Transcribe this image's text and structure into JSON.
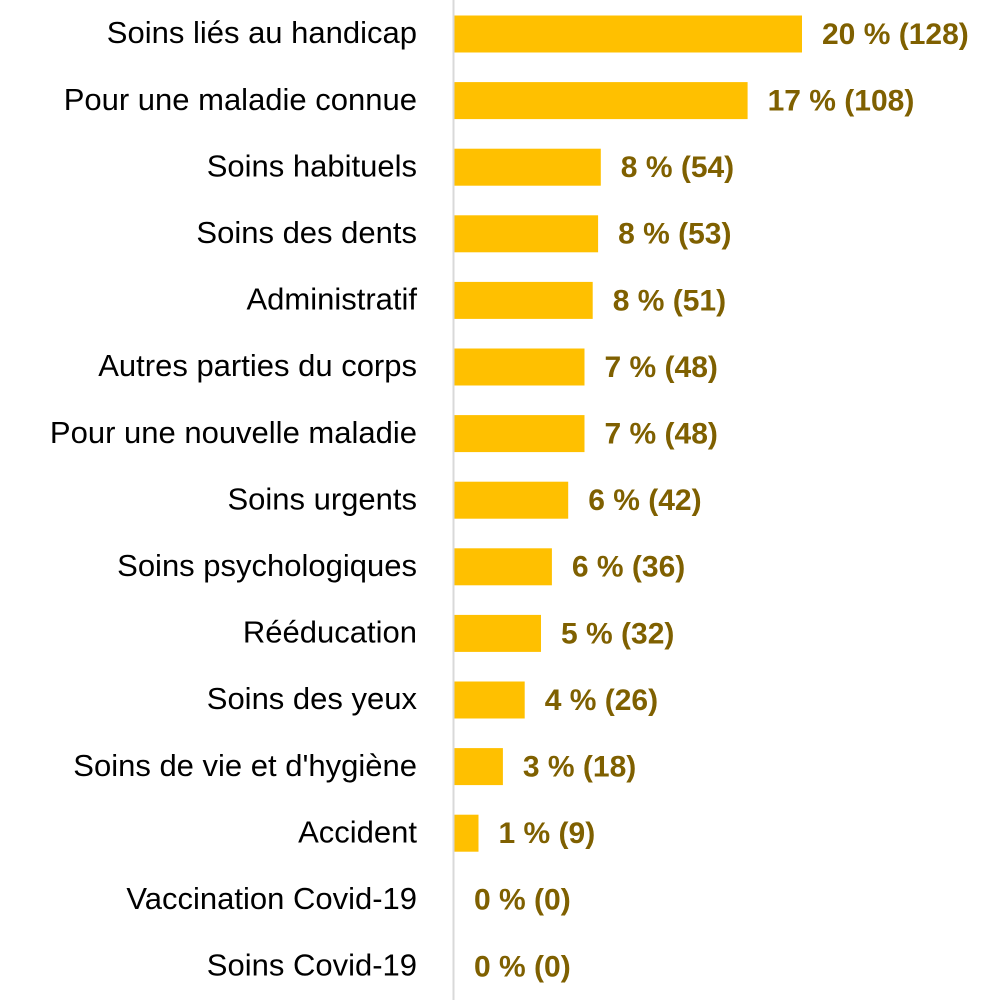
{
  "chart_data": {
    "type": "bar",
    "orientation": "horizontal",
    "categories": [
      "Soins liés au handicap",
      "Pour une maladie connue",
      "Soins habituels",
      "Soins des dents",
      "Administratif",
      "Autres parties du corps",
      "Pour une nouvelle maladie",
      "Soins urgents",
      "Soins psychologiques",
      "Rééducation",
      "Soins des yeux",
      "Soins de vie et d'hygiène",
      "Accident",
      "Vaccination Covid-19",
      "Soins Covid-19"
    ],
    "values": [
      128,
      108,
      54,
      53,
      51,
      48,
      48,
      42,
      36,
      32,
      26,
      18,
      9,
      0,
      0
    ],
    "data_labels": [
      "20 % (128)",
      "17 % (108)",
      "8 % (54)",
      "8 % (53)",
      "8 % (51)",
      "7 % (48)",
      "7 % (48)",
      "6 % (42)",
      "6 % (36)",
      "5 % (32)",
      "4 % (26)",
      "3 % (18)",
      "1 % (9)",
      "0 % (0)",
      "0 % (0)"
    ],
    "xlim": [
      0,
      128
    ],
    "grid": false,
    "legend": "none",
    "colors": {
      "bar": "#FFC000",
      "value_label": "#7F6000",
      "axis": "#D9D9D9",
      "category_label": "#000000"
    }
  }
}
